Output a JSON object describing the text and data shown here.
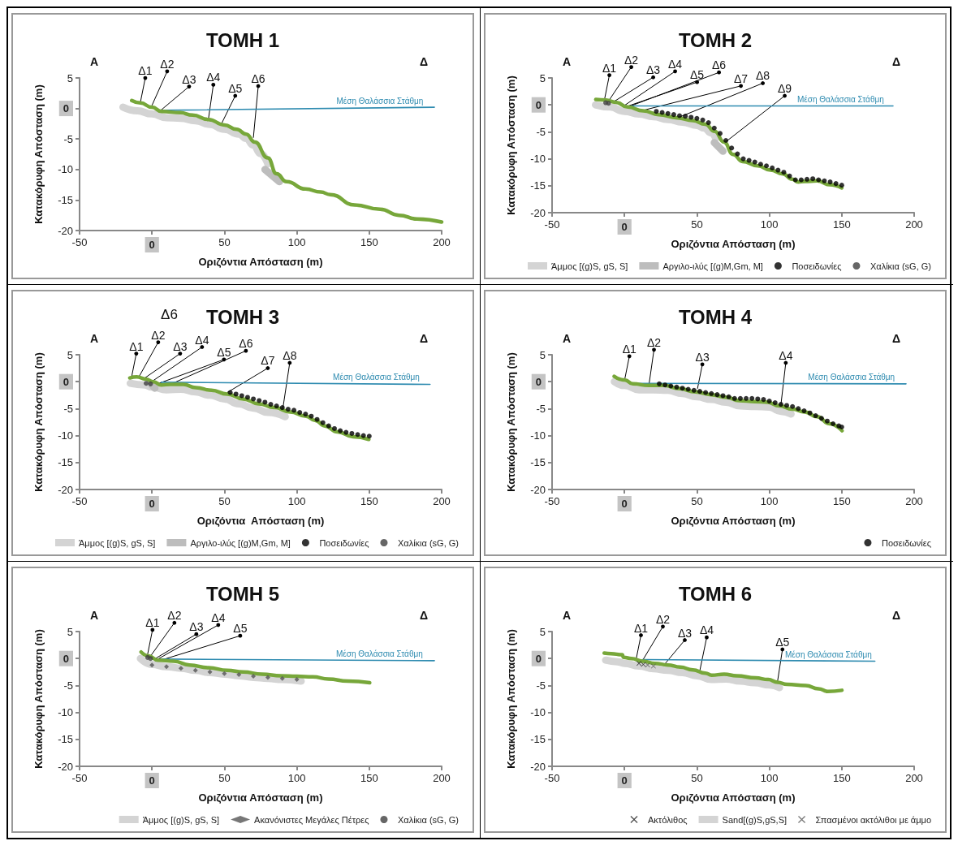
{
  "chart_data": [
    {
      "type": "line",
      "title": "ΤΟΜΗ 1",
      "xlabel": "Οριζόντια Απόσταση (m)",
      "ylabel": "Κατακόρυφη Απόσταση (m)",
      "xlim": [
        -50,
        200
      ],
      "xticks": [
        -50,
        0,
        50,
        100,
        150,
        200
      ],
      "ylim": [
        -20,
        5
      ],
      "yticks": [
        -20,
        -15,
        -10,
        -5,
        0,
        5
      ],
      "annotations": [
        "Α",
        "Δ",
        {
          "text": "Δ1",
          "x": -8,
          "y": 1
        },
        {
          "text": "Δ2",
          "x": 0,
          "y": 0.5
        },
        {
          "text": "Δ3",
          "x": 5.6,
          "y": -0.4
        },
        {
          "text": "Δ4",
          "x": 39,
          "y": -1.7
        },
        {
          "text": "Δ5",
          "x": 48,
          "y": -2.5
        },
        {
          "text": "Δ6",
          "x": 70,
          "y": -4.8
        }
      ],
      "series": [
        {
          "color": "#d4d4d4",
          "line_style": "solid",
          "x": [
            -20,
            -10,
            0,
            10,
            20,
            30,
            40,
            50,
            60,
            65,
            70,
            75,
            80
          ],
          "values": [
            0.2,
            -0.4,
            -0.9,
            -1.5,
            -1.6,
            -2.0,
            -2.6,
            -3.4,
            -4.2,
            -4.9,
            -6.0,
            -7.4,
            -9.1
          ]
        },
        {
          "color": "#bdbdbd",
          "line_style": "solid",
          "x": [
            78,
            88
          ],
          "values": [
            -10,
            -12
          ]
        },
        {
          "color": "#77a73a",
          "x": [
            -14,
            -8,
            0,
            6.7,
            19.6,
            28,
            39,
            50,
            58.4,
            65,
            71,
            80,
            86,
            93,
            106,
            116.6,
            123,
            140,
            157.5,
            170.5,
            183,
            200
          ],
          "values": [
            1.3,
            0.9,
            0.2,
            -0.5,
            -0.7,
            -1.1,
            -1.8,
            -2.7,
            -3.4,
            -4.2,
            -5.5,
            -8.1,
            -10.7,
            -12,
            -13.2,
            -13.7,
            -14.1,
            -15.8,
            -16.5,
            -17.5,
            -18.1,
            -18.6
          ]
        },
        {
          "name": "Μέση Θαλάσσια Στάθμη",
          "color": "#2e8bb0",
          "x": [
            6.7,
            195
          ],
          "values": [
            -0.3,
            0.2
          ]
        }
      ]
    },
    {
      "type": "line",
      "title": "ΤΟΜΗ 2",
      "xlabel": "Οριζόντια Απόσταση (m)",
      "ylabel": "Κατακόρυφη Απόσταση (m)",
      "xlim": [
        -50,
        200
      ],
      "xticks": [
        -50,
        0,
        50,
        100,
        150,
        200
      ],
      "ylim": [
        -20,
        5
      ],
      "yticks": [
        -20,
        -15,
        -10,
        -5,
        0,
        5
      ],
      "legend": "bottom",
      "annotations": [
        "Α",
        "Δ",
        {
          "text": "Δ1",
          "x": -13.8,
          "y": 1
        },
        {
          "text": "Δ2",
          "x": -11,
          "y": 0.7
        },
        {
          "text": "Δ3",
          "x": -7.4,
          "y": 0.6
        },
        {
          "text": "Δ4",
          "x": 0,
          "y": -0.1
        },
        {
          "text": "Δ5",
          "x": 1.6,
          "y": -0.3
        },
        {
          "text": "Δ6",
          "x": 3.3,
          "y": -0.3
        },
        {
          "text": "Δ7",
          "x": 13,
          "y": -1
        },
        {
          "text": "Δ8",
          "x": 37.6,
          "y": -2.3
        },
        {
          "text": "Δ9",
          "x": 69.7,
          "y": -6.9
        }
      ],
      "series": [
        {
          "name": "Άμμος [(g)S, gS, S]",
          "color": "#d4d4d4",
          "line_style": "solid",
          "x": [
            -20,
            -10,
            0,
            10,
            20,
            30,
            40,
            50,
            55,
            60,
            63
          ],
          "values": [
            0,
            -0.4,
            -1.2,
            -1.7,
            -2.2,
            -2.7,
            -3.2,
            -3.8,
            -4.3,
            -5.2,
            -6.2
          ]
        },
        {
          "name": "Αργιλο-ιλύς [(g)M,Gm, M]",
          "color": "#bdbdbd",
          "line_style": "solid",
          "x": [
            62,
            68
          ],
          "values": [
            -7,
            -8.6
          ]
        },
        {
          "color": "#77a73a",
          "x": [
            -19.8,
            -12.7,
            -6.3,
            2.3,
            13,
            23.7,
            36.5,
            47.3,
            55.8,
            62.3,
            68.7,
            75,
            81.5,
            92,
            100.8,
            109.4,
            115.8,
            120,
            124.4,
            133,
            141.5,
            150
          ],
          "values": [
            1.0,
            0.9,
            0.5,
            -0.4,
            -1.1,
            -1.8,
            -2.4,
            -2.9,
            -3.6,
            -4.9,
            -6.9,
            -9.2,
            -10.5,
            -11.3,
            -12.1,
            -12.8,
            -13.8,
            -14.3,
            -14.2,
            -14.1,
            -14.8,
            -15.4
          ]
        },
        {
          "name": "Μέση Θαλάσσια Στάθμη",
          "color": "#2e8bb0",
          "x": [
            4.4,
            185.4
          ],
          "values": [
            -0.2,
            -0.2
          ]
        },
        {
          "type": "scatter",
          "name": "Ποσειδωνίες",
          "color": "#000000",
          "marker": "circle",
          "x": [
            22,
            26,
            30,
            34,
            38,
            42,
            46,
            50,
            54,
            58,
            62,
            66,
            70,
            74,
            78,
            82,
            86,
            90,
            94,
            98,
            102,
            106,
            110,
            114,
            118,
            122,
            126,
            130,
            134,
            138,
            142,
            146,
            150
          ],
          "values": [
            -1.2,
            -1.4,
            -1.6,
            -1.8,
            -2.0,
            -2.1,
            -2.3,
            -2.5,
            -2.8,
            -3.3,
            -4.3,
            -5.3,
            -6.6,
            -8.0,
            -9.1,
            -10.0,
            -10.3,
            -10.6,
            -11.0,
            -11.3,
            -11.7,
            -12.1,
            -12.5,
            -13.2,
            -13.9,
            -13.9,
            -13.8,
            -13.7,
            -13.9,
            -14.1,
            -14.3,
            -14.6,
            -14.9
          ]
        },
        {
          "type": "scatter",
          "name": "Χαλίκια (sG, G)",
          "color": "#404040",
          "marker": "circle",
          "x": [
            -13,
            -11
          ],
          "values": [
            0.4,
            0.3
          ]
        }
      ]
    },
    {
      "type": "line",
      "title": "ΤΟΜΗ 3",
      "xlabel": "Οριζόντια  Απόσταση (m)",
      "ylabel": "Κατακόρυφη Απόσταση (m)",
      "xlim": [
        -50,
        200
      ],
      "xticks": [
        -50,
        0,
        50,
        100,
        150,
        200
      ],
      "ylim": [
        -20,
        5
      ],
      "yticks": [
        -20,
        -15,
        -10,
        -5,
        0,
        5
      ],
      "legend": "bottom",
      "annotations": [
        "Α",
        "Δ",
        "Δ6",
        {
          "text": "Δ1",
          "x": -14.2,
          "y": 0.7
        },
        {
          "text": "Δ2",
          "x": -8.8,
          "y": 1
        },
        {
          "text": "Δ3",
          "x": -4.9,
          "y": 0.7
        },
        {
          "text": "Δ4",
          "x": 0.3,
          "y": 0.1
        },
        {
          "text": "Δ5",
          "x": 3.8,
          "y": -0.4
        },
        {
          "text": "Δ6",
          "x": 11.8,
          "y": -0.6
        },
        {
          "text": "Δ7",
          "x": 52,
          "y": -2
        },
        {
          "text": "Δ8",
          "x": 90.4,
          "y": -4.9
        }
      ],
      "series": [
        {
          "name": "Άμμος [(g)S, gS, S]",
          "color": "#d4d4d4",
          "line_style": "solid",
          "x": [
            -15,
            -5,
            0,
            10,
            20,
            30,
            40,
            50,
            60,
            70,
            80,
            92
          ],
          "values": [
            -0.3,
            -0.6,
            -1.0,
            -1.5,
            -1.4,
            -1.9,
            -2.5,
            -3.2,
            -4.1,
            -4.9,
            -5.7,
            -6.5
          ]
        },
        {
          "name": "Αργιλο-ιλύς [(g)M,Gm, M]",
          "color": "#bdbdbd",
          "line_style": "solid",
          "x": [
            0,
            2
          ],
          "values": [
            -0.6,
            -1.2
          ]
        },
        {
          "color": "#77a73a",
          "x": [
            -15.3,
            -10.5,
            -4.4,
            1,
            6.4,
            12.9,
            21.6,
            30.3,
            41.1,
            52,
            62.8,
            73.7,
            84.5,
            95.4,
            106.3,
            112.8,
            119.3,
            128,
            138.8,
            149.7
          ],
          "values": [
            0.7,
            0.9,
            0.5,
            0,
            -0.6,
            -0.5,
            -0.5,
            -1.1,
            -1.6,
            -2.3,
            -3.2,
            -4.1,
            -4.8,
            -5.6,
            -6.4,
            -7.2,
            -8.2,
            -9.3,
            -10.2,
            -10.7
          ]
        },
        {
          "name": "Μέση Θαλάσσια Στάθμη",
          "color": "#2e8bb0",
          "x": [
            6.4,
            192
          ],
          "values": [
            -0.1,
            -0.5
          ]
        },
        {
          "type": "scatter",
          "name": "Ποσειδωνίες",
          "color": "#000000",
          "marker": "circle",
          "x": [
            54,
            58,
            62,
            66,
            70,
            74,
            78,
            82,
            86,
            90,
            94,
            98,
            102,
            106,
            110,
            114,
            118,
            122,
            126,
            130,
            134,
            138,
            142,
            146,
            150
          ],
          "values": [
            -2.0,
            -2.3,
            -2.6,
            -2.9,
            -3.2,
            -3.5,
            -3.8,
            -4.2,
            -4.5,
            -4.8,
            -5.1,
            -5.3,
            -5.7,
            -6.0,
            -6.4,
            -7.0,
            -7.6,
            -8.2,
            -8.7,
            -9.1,
            -9.4,
            -9.6,
            -9.8,
            -10.0,
            -10.1
          ]
        },
        {
          "type": "scatter",
          "name": "Χαλίκια (sG, G)",
          "color": "#404040",
          "marker": "circle",
          "x": [
            -4,
            -1
          ],
          "values": [
            -0.3,
            -0.4
          ]
        }
      ]
    },
    {
      "type": "line",
      "title": "ΤΟΜΗ 4",
      "xlabel": "Οριζόντια Απόσταση (m)",
      "ylabel": "Κατακόρυφη Απόσταση (m)",
      "xlim": [
        -50,
        200
      ],
      "xticks": [
        -50,
        0,
        50,
        100,
        150,
        200
      ],
      "ylim": [
        -20,
        5
      ],
      "yticks": [
        -20,
        -15,
        -10,
        -5,
        0,
        5
      ],
      "legend": "bottom",
      "annotations": [
        "Α",
        "Δ",
        {
          "text": "Δ1",
          "x": 0,
          "y": 0.2
        },
        {
          "text": "Δ2",
          "x": 17,
          "y": -0.4
        },
        {
          "text": "Δ3",
          "x": 50.4,
          "y": -1.3
        },
        {
          "text": "Δ4",
          "x": 108,
          "y": -4.3
        }
      ],
      "series": [
        {
          "color": "#d4d4d4",
          "line_style": "solid",
          "x": [
            -7,
            0,
            10,
            20,
            30,
            40,
            50,
            60,
            70,
            80,
            90,
            100,
            108,
            115
          ],
          "values": [
            0,
            -0.7,
            -1.5,
            -1.5,
            -1.6,
            -2.2,
            -2.8,
            -3.3,
            -3.8,
            -4.5,
            -4.6,
            -4.7,
            -5.5,
            -6.0
          ]
        },
        {
          "color": "#77a73a",
          "x": [
            -7.1,
            0.4,
            5.8,
            16.6,
            27.4,
            38.1,
            48.9,
            59.7,
            70.5,
            79.1,
            89.9,
            98.5,
            107.1,
            115.8,
            124.4,
            133,
            141.6,
            150.2
          ],
          "values": [
            1.0,
            0.3,
            -0.4,
            -0.7,
            -0.7,
            -1.3,
            -1.9,
            -2.4,
            -2.9,
            -3.5,
            -3.7,
            -3.8,
            -4.5,
            -5.1,
            -5.6,
            -6.5,
            -7.8,
            -9.1
          ]
        },
        {
          "name": "Μέση Θαλάσσια Στάθμη",
          "color": "#2e8bb0",
          "x": [
            5.8,
            194.4
          ],
          "values": [
            -0.3,
            -0.4
          ]
        },
        {
          "type": "scatter",
          "name": "Ποσειδωνίες",
          "color": "#000000",
          "marker": "circle",
          "x": [
            24,
            28,
            32,
            36,
            40,
            44,
            48,
            52,
            56,
            60,
            64,
            68,
            72,
            76,
            80,
            84,
            88,
            92,
            96,
            100,
            104,
            108,
            112,
            116,
            120,
            124,
            128,
            132,
            136,
            140,
            144,
            148,
            150
          ],
          "values": [
            -0.4,
            -0.6,
            -0.8,
            -1.0,
            -1.2,
            -1.4,
            -1.6,
            -1.8,
            -2.0,
            -2.2,
            -2.4,
            -2.6,
            -2.8,
            -3.1,
            -3.1,
            -3.1,
            -3.1,
            -3.2,
            -3.3,
            -3.6,
            -3.9,
            -4.2,
            -4.4,
            -4.6,
            -5.0,
            -5.4,
            -5.8,
            -6.3,
            -6.8,
            -7.3,
            -7.8,
            -8.2,
            -8.4
          ]
        }
      ]
    },
    {
      "type": "line",
      "title": "ΤΟΜΗ 5",
      "xlabel": "Οριζόντια Απόσταση (m)",
      "ylabel": "Κατακόρυφη Απόσταση (m)",
      "xlim": [
        -50,
        200
      ],
      "xticks": [
        -50,
        0,
        50,
        100,
        150,
        200
      ],
      "ylim": [
        -20,
        5
      ],
      "yticks": [
        -20,
        -15,
        -10,
        -5,
        0,
        5
      ],
      "legend": "bottom",
      "annotations": [
        "Α",
        "Δ",
        {
          "text": "Δ1",
          "x": -3,
          "y": 0.8
        },
        {
          "text": "Δ2",
          "x": -1.4,
          "y": 0.3
        },
        {
          "text": "Δ3",
          "x": 2.4,
          "y": 0
        },
        {
          "text": "Δ4",
          "x": 4.1,
          "y": -0.1
        },
        {
          "text": "Δ5",
          "x": 6.3,
          "y": -0.3
        }
      ],
      "series": [
        {
          "name": "Άμμος [(g)S, gS, S]",
          "color": "#d4d4d4",
          "line_style": "solid",
          "x": [
            -8,
            0,
            10,
            20,
            30,
            40,
            50,
            60,
            70,
            80,
            90,
            103
          ],
          "values": [
            0,
            -1.1,
            -1.5,
            -1.8,
            -2.2,
            -2.6,
            -2.9,
            -3.2,
            -3.5,
            -3.7,
            -3.9,
            -4.2
          ]
        },
        {
          "type": "scatter",
          "name": "Ακανόνιστες Μεγάλες Πέτρες",
          "color": "#555555",
          "marker": "diamond",
          "x": [
            0,
            10,
            20,
            30,
            40,
            50,
            60,
            70,
            80,
            90,
            100
          ],
          "values": [
            -1.2,
            -1.5,
            -1.8,
            -2.2,
            -2.5,
            -2.8,
            -3.0,
            -3.3,
            -3.5,
            -3.7,
            -3.9
          ]
        },
        {
          "color": "#77a73a",
          "x": [
            -7.5,
            -2.4,
            4.1,
            15,
            25.9,
            39,
            51.9,
            62.9,
            76,
            89.2,
            100,
            111,
            121.9,
            135,
            150.3
          ],
          "values": [
            1.2,
            0.5,
            -0.3,
            -0.5,
            -1.2,
            -1.7,
            -2.2,
            -2.5,
            -2.9,
            -3.2,
            -3.3,
            -3.4,
            -3.8,
            -4.2,
            -4.5
          ]
        },
        {
          "name": "Μέση Θαλάσσια Στάθμη",
          "color": "#2e8bb0",
          "x": [
            5.2,
            195
          ],
          "values": [
            -0.1,
            -0.4
          ]
        },
        {
          "type": "scatter",
          "name": "Χαλίκια (sG, G)",
          "color": "#404040",
          "marker": "circle",
          "x": [
            -3,
            -1
          ],
          "values": [
            0.2,
            0
          ]
        }
      ]
    },
    {
      "type": "line",
      "title": "ΤΟΜΗ 6",
      "xlabel": "Οριζόντια Απόσταση (m)",
      "ylabel": "Κατακόρυφη Απόσταση (m)",
      "xlim": [
        -50,
        200
      ],
      "xticks": [
        -50,
        0,
        50,
        100,
        150,
        200
      ],
      "ylim": [
        -20,
        5
      ],
      "yticks": [
        -20,
        -15,
        -10,
        -5,
        0,
        5
      ],
      "legend": "bottom",
      "annotations": [
        "Α",
        "Δ",
        {
          "text": "Δ1",
          "x": 8,
          "y": -0.2
        },
        {
          "text": "Δ2",
          "x": 12.4,
          "y": -0.4
        },
        {
          "text": "Δ3",
          "x": 27.6,
          "y": -1.1
        },
        {
          "text": "Δ4",
          "x": 51.9,
          "y": -2.4
        },
        {
          "text": "Δ5",
          "x": 105.7,
          "y": -4.2
        }
      ],
      "series": [
        {
          "type": "scatter",
          "name": "Ακτόλιθος",
          "color": "#202020",
          "marker": "cross",
          "x": [
            10,
            13
          ],
          "values": [
            -0.9,
            -1.1
          ]
        },
        {
          "name": "Sand[(g)S,gS,S]",
          "color": "#d4d4d4",
          "line_style": "solid",
          "x": [
            -13,
            -5,
            0,
            10,
            20,
            30,
            40,
            50,
            60,
            70,
            80,
            90,
            100,
            107
          ],
          "values": [
            -0.3,
            -0.6,
            -0.9,
            -1.4,
            -1.9,
            -2.2,
            -2.6,
            -3.2,
            -3.9,
            -3.8,
            -4.2,
            -4.5,
            -4.9,
            -5.4
          ]
        },
        {
          "type": "scatter",
          "name": "Σπασμένοι ακτόλιθοι με άμμο",
          "color": "#555555",
          "marker": "cross",
          "x": [
            16,
            20
          ],
          "values": [
            -1.2,
            -1.4
          ]
        },
        {
          "color": "#77a73a",
          "x": [
            -14,
            -9.2,
            -1.6,
            -0.6,
            4.9,
            12.4,
            21.1,
            29.8,
            38.5,
            47.2,
            55.8,
            60.2,
            68.8,
            77.5,
            90.5,
            99.2,
            105.7,
            112.2,
            125.2,
            133.9,
            140.4,
            150.1
          ],
          "values": [
            1.0,
            0.9,
            0.7,
            0.2,
            0,
            -0.5,
            -0.9,
            -1.2,
            -1.6,
            -2.1,
            -2.7,
            -3.1,
            -2.9,
            -3.2,
            -3.6,
            -3.9,
            -4.4,
            -4.8,
            -5.0,
            -5.6,
            -6.1,
            -5.9
          ]
        },
        {
          "name": "Μέση Θαλάσσια Στάθμη",
          "color": "#2e8bb0",
          "x": [
            12.4,
            172.9
          ],
          "values": [
            -0.2,
            -0.5
          ]
        }
      ]
    }
  ]
}
